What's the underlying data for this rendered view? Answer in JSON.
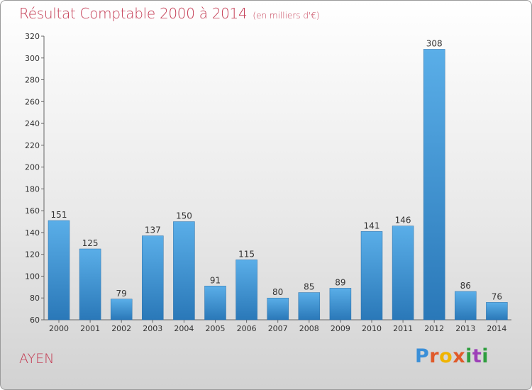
{
  "chart_data": {
    "type": "bar",
    "title": "Résultat Comptable 2000 à 2014",
    "subtitle": "(en milliers d'€)",
    "xlabel": "",
    "ylabel": "",
    "categories": [
      "2000",
      "2001",
      "2002",
      "2003",
      "2004",
      "2005",
      "2006",
      "2007",
      "2008",
      "2009",
      "2010",
      "2011",
      "2012",
      "2013",
      "2014"
    ],
    "values": [
      151,
      125,
      79,
      137,
      150,
      91,
      115,
      80,
      85,
      89,
      141,
      146,
      308,
      86,
      76
    ],
    "ylim": [
      60,
      320
    ],
    "yticks": [
      60,
      80,
      100,
      120,
      140,
      160,
      180,
      200,
      220,
      240,
      260,
      280,
      300,
      320
    ],
    "grid": false,
    "colors": {
      "bar_light": "#5aaee8",
      "bar_dark": "#2a78b8",
      "title": "#c43c54"
    }
  },
  "location": "AYEN",
  "brand": [
    "P",
    "r",
    "o",
    "x",
    "i",
    "t",
    "i"
  ]
}
